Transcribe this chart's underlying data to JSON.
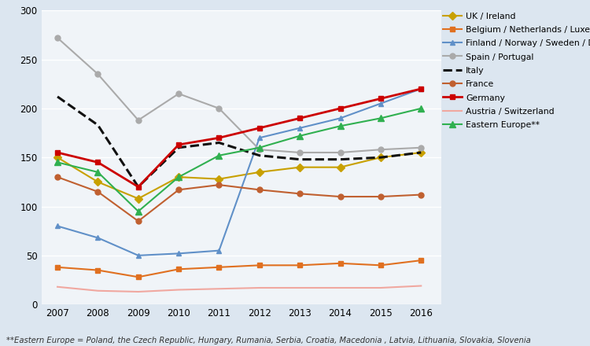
{
  "years": [
    2007,
    2008,
    2009,
    2010,
    2011,
    2012,
    2013,
    2014,
    2015,
    2016
  ],
  "series": [
    {
      "label": "UK / Ireland",
      "color": "#c8a000",
      "marker": "D",
      "linestyle": "-",
      "linewidth": 1.5,
      "markersize": 5,
      "values": [
        150,
        125,
        108,
        130,
        128,
        135,
        140,
        140,
        150,
        155
      ]
    },
    {
      "label": "Belgium / Netherlands / Luxembourg",
      "color": "#e07020",
      "marker": "s",
      "linestyle": "-",
      "linewidth": 1.5,
      "markersize": 5,
      "values": [
        38,
        35,
        28,
        36,
        38,
        40,
        40,
        42,
        40,
        45
      ]
    },
    {
      "label": "Finland / Norway / Sweden / Denmark",
      "color": "#6090c8",
      "marker": "^",
      "linestyle": "-",
      "linewidth": 1.5,
      "markersize": 5,
      "values": [
        80,
        68,
        50,
        52,
        55,
        170,
        180,
        190,
        205,
        220
      ]
    },
    {
      "label": "Spain / Portugal",
      "color": "#aaaaaa",
      "marker": "o",
      "linestyle": "-",
      "linewidth": 1.5,
      "markersize": 5,
      "values": [
        272,
        235,
        188,
        215,
        200,
        158,
        155,
        155,
        158,
        160
      ]
    },
    {
      "label": "Italy",
      "color": "#111111",
      "marker": null,
      "linestyle": "--",
      "linewidth": 2.2,
      "markersize": 5,
      "values": [
        212,
        183,
        120,
        160,
        165,
        152,
        148,
        148,
        150,
        155
      ]
    },
    {
      "label": "France",
      "color": "#c06030",
      "marker": "o",
      "linestyle": "-",
      "linewidth": 1.5,
      "markersize": 5,
      "values": [
        130,
        115,
        85,
        117,
        122,
        117,
        113,
        110,
        110,
        112
      ]
    },
    {
      "label": "Germany",
      "color": "#cc0000",
      "marker": "s",
      "linestyle": "-",
      "linewidth": 2.0,
      "markersize": 5,
      "values": [
        155,
        145,
        120,
        163,
        170,
        180,
        190,
        200,
        210,
        220
      ]
    },
    {
      "label": "Austria / Switzerland",
      "color": "#f0a8a0",
      "marker": null,
      "linestyle": "-",
      "linewidth": 1.5,
      "markersize": 5,
      "values": [
        18,
        14,
        13,
        15,
        16,
        17,
        17,
        17,
        17,
        19
      ]
    },
    {
      "label": "Eastern Europe**",
      "color": "#30b050",
      "marker": "^",
      "linestyle": "-",
      "linewidth": 1.5,
      "markersize": 6,
      "values": [
        145,
        135,
        95,
        130,
        152,
        160,
        172,
        182,
        190,
        200
      ]
    }
  ],
  "xlim": [
    2006.6,
    2016.5
  ],
  "ylim": [
    0,
    300
  ],
  "yticks": [
    0,
    50,
    100,
    150,
    200,
    250,
    300
  ],
  "xticks": [
    2007,
    2008,
    2009,
    2010,
    2011,
    2012,
    2013,
    2014,
    2015,
    2016
  ],
  "fig_bg_color": "#dce6f0",
  "plot_bg_color": "#f0f4f8",
  "footnote": "**Eastern Europe = Poland, the Czech Republic, Hungary, Rumania, Serbia, Croatia, Macedonia , Latvia, Lithuania, Slovakia, Slovenia",
  "grid_color": "#ffffff",
  "legend_fontsize": 7.8,
  "tick_fontsize": 8.5,
  "footnote_fontsize": 7.2
}
